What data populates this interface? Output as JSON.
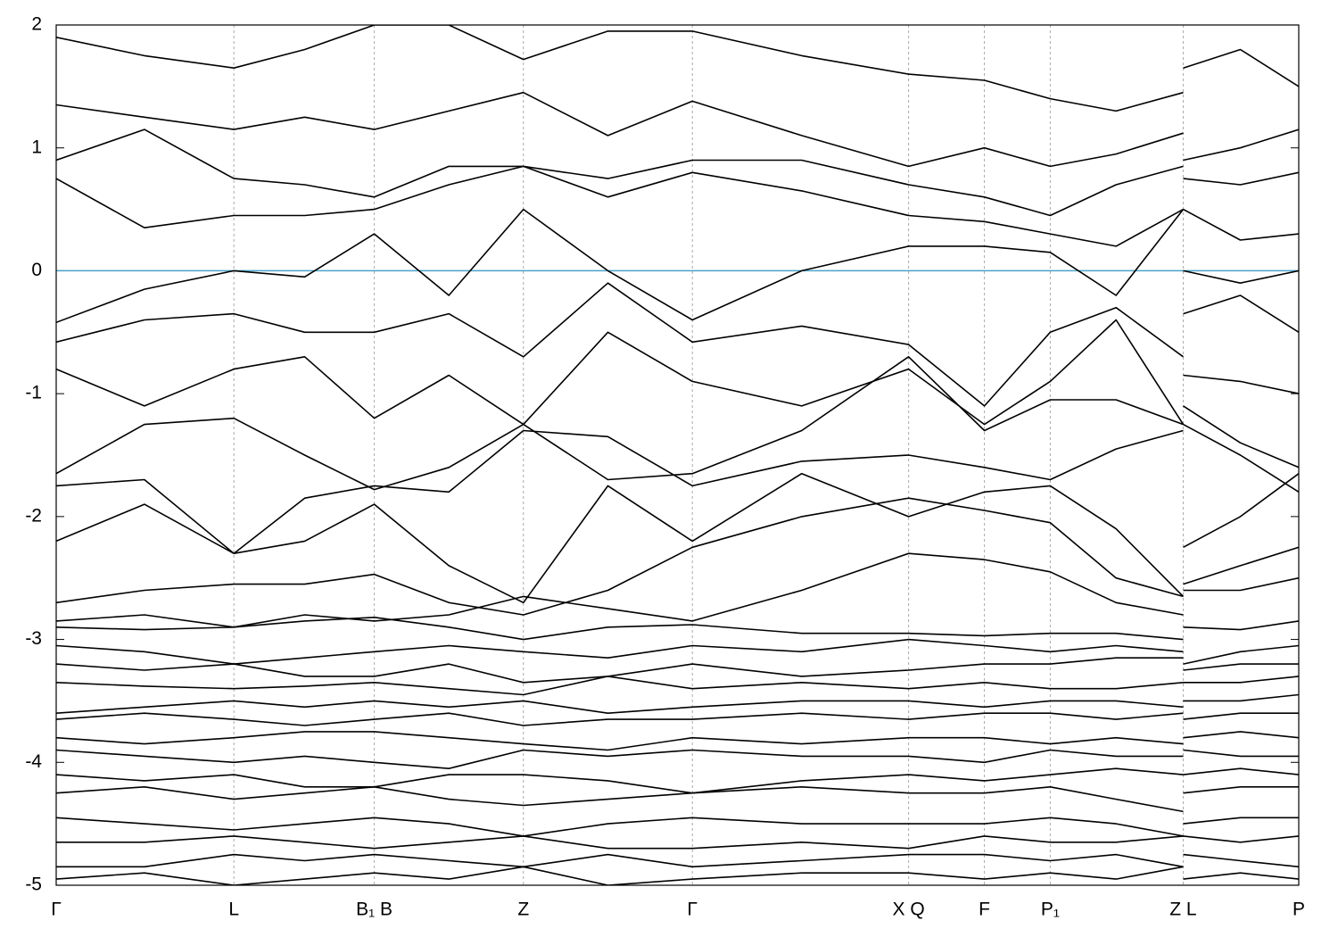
{
  "chart_data": {
    "type": "line",
    "xlim": [
      0,
      1
    ],
    "ylim": [
      -5,
      2
    ],
    "yticks": [
      -5,
      -4,
      -3,
      -2,
      -1,
      0,
      1,
      2
    ],
    "xticks": [
      {
        "value": 0,
        "label": "Γ"
      },
      {
        "value": 0.143,
        "label": "L"
      },
      {
        "value": 0.256,
        "label": "B₁ B"
      },
      {
        "value": 0.376,
        "label": "Z"
      },
      {
        "value": 0.512,
        "label": "Γ"
      },
      {
        "value": 0.686,
        "label": "X Q"
      },
      {
        "value": 0.747,
        "label": "F"
      },
      {
        "value": 0.8,
        "label": "P₁"
      },
      {
        "value": 0.907,
        "label": "Z L"
      },
      {
        "value": 1,
        "label": "P"
      }
    ],
    "xgrid": true,
    "line_color": "#000000",
    "reference_line": {
      "value": 0,
      "color": "#4aa3c8"
    },
    "x": [
      0,
      0.071,
      0.143,
      0.2,
      0.256,
      0.316,
      0.376,
      0.444,
      0.512,
      0.6,
      0.686,
      0.747,
      0.8,
      0.853,
      0.907,
      0.907,
      0.907,
      0.953,
      1
    ],
    "series": [
      {
        "values": [
          1.9,
          1.75,
          1.65,
          1.8,
          2.0,
          2.0,
          1.72,
          1.95,
          1.95,
          1.75,
          1.6,
          1.55,
          1.4,
          1.3,
          1.45,
          null,
          1.65,
          1.8,
          1.5
        ]
      },
      {
        "values": [
          1.35,
          1.25,
          1.15,
          1.25,
          1.15,
          1.3,
          1.45,
          1.1,
          1.38,
          1.1,
          0.85,
          1.0,
          0.85,
          0.95,
          1.12,
          null,
          0.9,
          1.0,
          1.15
        ]
      },
      {
        "values": [
          0.9,
          1.15,
          0.75,
          0.7,
          0.6,
          0.85,
          0.85,
          0.75,
          0.9,
          0.9,
          0.7,
          0.6,
          0.45,
          0.7,
          0.85,
          null,
          0.75,
          0.7,
          0.8
        ]
      },
      {
        "values": [
          0.75,
          0.35,
          0.45,
          0.45,
          0.5,
          0.7,
          0.85,
          0.6,
          0.8,
          0.65,
          0.45,
          0.4,
          0.3,
          0.2,
          0.5,
          null,
          0.5,
          0.25,
          0.3
        ]
      },
      {
        "values": [
          -0.42,
          -0.15,
          0.0,
          -0.05,
          0.3,
          -0.2,
          0.5,
          0.0,
          -0.4,
          0.0,
          0.2,
          0.2,
          0.15,
          -0.2,
          0.5,
          null,
          0.0,
          -0.1,
          0.0
        ]
      },
      {
        "values": [
          -0.58,
          -0.4,
          -0.35,
          -0.5,
          -0.5,
          -0.35,
          -0.7,
          -0.1,
          -0.58,
          -0.45,
          -0.6,
          -1.1,
          -0.5,
          -0.3,
          -0.7,
          null,
          -0.35,
          -0.2,
          -0.5
        ]
      },
      {
        "values": [
          -0.8,
          -1.1,
          -0.8,
          -0.7,
          -1.2,
          -0.85,
          -1.25,
          -0.5,
          -0.9,
          -1.1,
          -0.8,
          -1.25,
          -0.9,
          -0.4,
          -1.25,
          null,
          -0.85,
          -0.9,
          -1.0
        ]
      },
      {
        "values": [
          -1.65,
          -1.25,
          -1.2,
          -1.5,
          -1.78,
          -1.6,
          -1.25,
          -1.7,
          -1.65,
          -1.3,
          -0.7,
          -1.3,
          -1.05,
          -1.05,
          -1.25,
          null,
          -1.1,
          -1.4,
          -1.6
        ]
      },
      {
        "values": [
          -1.75,
          -1.7,
          -2.3,
          -1.85,
          -1.75,
          -1.8,
          -1.3,
          -1.35,
          -1.75,
          -1.55,
          -1.5,
          -1.6,
          -1.7,
          -1.45,
          -1.3,
          null,
          -1.25,
          -1.5,
          -1.8
        ]
      },
      {
        "values": [
          -2.2,
          -1.9,
          -2.3,
          -2.2,
          -1.9,
          -2.4,
          -2.7,
          -1.75,
          -2.2,
          -1.65,
          -2.0,
          -1.8,
          -1.75,
          -2.1,
          -2.65,
          null,
          -2.25,
          -2.0,
          -1.65
        ]
      },
      {
        "values": [
          -2.7,
          -2.6,
          -2.55,
          -2.55,
          -2.47,
          -2.7,
          -2.8,
          -2.6,
          -2.25,
          -2.0,
          -1.85,
          -1.95,
          -2.05,
          -2.5,
          -2.65,
          null,
          -2.55,
          -2.4,
          -2.25
        ]
      },
      {
        "values": [
          -2.85,
          -2.8,
          -2.9,
          -2.8,
          -2.85,
          -2.8,
          -2.65,
          -2.75,
          -2.85,
          -2.6,
          -2.3,
          -2.35,
          -2.45,
          -2.7,
          -2.8,
          null,
          -2.6,
          -2.6,
          -2.5
        ]
      },
      {
        "values": [
          -2.9,
          -2.92,
          -2.9,
          -2.85,
          -2.82,
          -2.9,
          -3.0,
          -2.9,
          -2.88,
          -2.95,
          -2.95,
          -2.97,
          -2.95,
          -2.95,
          -3.0,
          null,
          -2.9,
          -2.92,
          -2.85
        ]
      },
      {
        "values": [
          -3.05,
          -3.1,
          -3.2,
          -3.15,
          -3.1,
          -3.05,
          -3.1,
          -3.15,
          -3.05,
          -3.1,
          -3.0,
          -3.05,
          -3.1,
          -3.05,
          -3.1,
          null,
          -3.2,
          -3.1,
          -3.05
        ]
      },
      {
        "values": [
          -3.2,
          -3.25,
          -3.2,
          -3.3,
          -3.3,
          -3.2,
          -3.35,
          -3.3,
          -3.2,
          -3.3,
          -3.25,
          -3.2,
          -3.2,
          -3.15,
          -3.15,
          null,
          -3.25,
          -3.2,
          -3.2
        ]
      },
      {
        "values": [
          -3.35,
          -3.38,
          -3.4,
          -3.38,
          -3.35,
          -3.4,
          -3.45,
          -3.3,
          -3.4,
          -3.35,
          -3.4,
          -3.35,
          -3.4,
          -3.4,
          -3.35,
          null,
          -3.35,
          -3.35,
          -3.3
        ]
      },
      {
        "values": [
          -3.6,
          -3.55,
          -3.5,
          -3.55,
          -3.5,
          -3.55,
          -3.5,
          -3.6,
          -3.55,
          -3.5,
          -3.5,
          -3.55,
          -3.5,
          -3.5,
          -3.55,
          null,
          -3.5,
          -3.5,
          -3.45
        ]
      },
      {
        "values": [
          -3.65,
          -3.6,
          -3.65,
          -3.7,
          -3.65,
          -3.6,
          -3.7,
          -3.65,
          -3.65,
          -3.6,
          -3.65,
          -3.6,
          -3.6,
          -3.65,
          -3.6,
          null,
          -3.65,
          -3.6,
          -3.6
        ]
      },
      {
        "values": [
          -3.8,
          -3.85,
          -3.8,
          -3.75,
          -3.75,
          -3.8,
          -3.85,
          -3.9,
          -3.8,
          -3.85,
          -3.8,
          -3.8,
          -3.85,
          -3.8,
          -3.85,
          null,
          -3.8,
          -3.75,
          -3.8
        ]
      },
      {
        "values": [
          -3.9,
          -3.95,
          -4.0,
          -3.95,
          -4.0,
          -4.05,
          -3.9,
          -3.95,
          -3.9,
          -3.95,
          -3.95,
          -4.0,
          -3.9,
          -3.95,
          -3.95,
          null,
          -3.9,
          -3.95,
          -3.95
        ]
      },
      {
        "values": [
          -4.1,
          -4.15,
          -4.1,
          -4.2,
          -4.2,
          -4.1,
          -4.1,
          -4.15,
          -4.25,
          -4.15,
          -4.1,
          -4.15,
          -4.1,
          -4.05,
          -4.1,
          null,
          -4.1,
          -4.05,
          -4.1
        ]
      },
      {
        "values": [
          -4.25,
          -4.2,
          -4.3,
          -4.25,
          -4.2,
          -4.3,
          -4.35,
          -4.3,
          -4.25,
          -4.2,
          -4.25,
          -4.25,
          -4.2,
          -4.3,
          -4.4,
          null,
          -4.25,
          -4.2,
          -4.2
        ]
      },
      {
        "values": [
          -4.45,
          -4.5,
          -4.55,
          -4.5,
          -4.45,
          -4.5,
          -4.6,
          -4.5,
          -4.45,
          -4.5,
          -4.5,
          -4.5,
          -4.45,
          -4.5,
          -4.6,
          null,
          -4.5,
          -4.45,
          -4.45
        ]
      },
      {
        "values": [
          -4.65,
          -4.65,
          -4.6,
          -4.65,
          -4.7,
          -4.65,
          -4.6,
          -4.7,
          -4.7,
          -4.65,
          -4.7,
          -4.6,
          -4.65,
          -4.65,
          -4.6,
          null,
          -4.6,
          -4.65,
          -4.6
        ]
      },
      {
        "values": [
          -4.85,
          -4.85,
          -4.75,
          -4.8,
          -4.75,
          -4.8,
          -4.85,
          -4.75,
          -4.85,
          -4.8,
          -4.75,
          -4.75,
          -4.8,
          -4.75,
          -4.85,
          null,
          -4.75,
          -4.8,
          -4.85
        ]
      },
      {
        "values": [
          -4.95,
          -4.9,
          -5.0,
          -4.95,
          -4.9,
          -4.95,
          -4.85,
          -5.0,
          -4.95,
          -4.9,
          -4.9,
          -4.95,
          -4.9,
          -4.95,
          -4.85,
          null,
          -4.95,
          -4.9,
          -4.95
        ]
      }
    ]
  }
}
